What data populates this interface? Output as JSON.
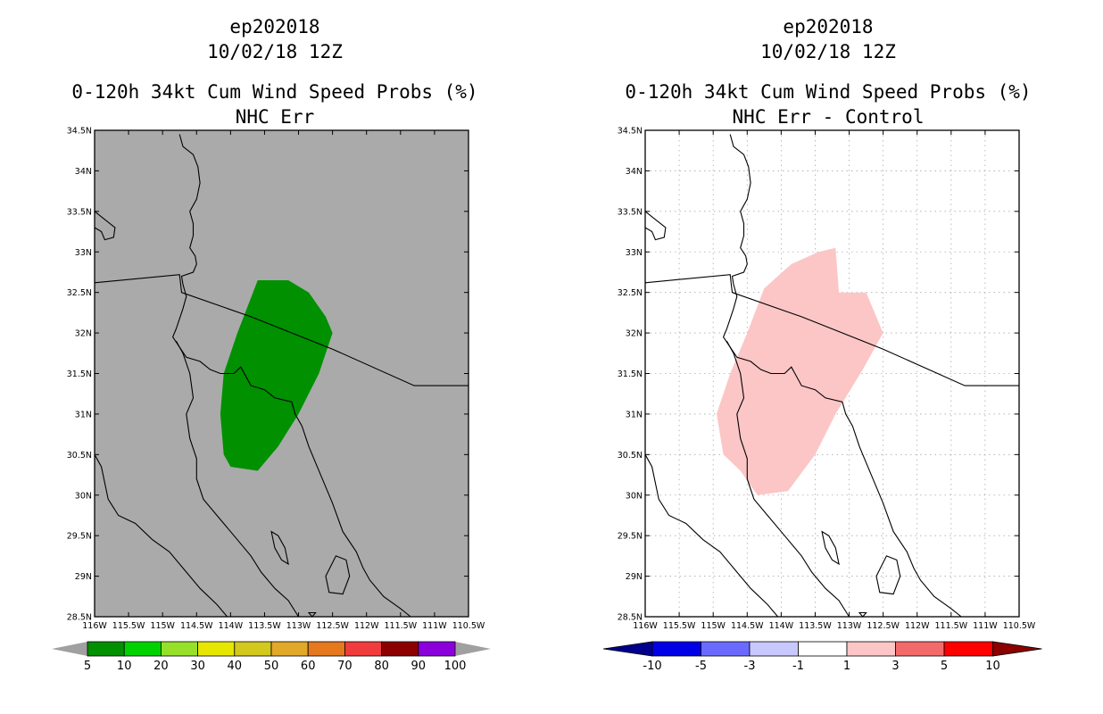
{
  "left_panel": {
    "title1": "ep202018",
    "title2": "10/02/18 12Z",
    "title3": "0-120h 34kt Cum Wind Speed Probs (%)",
    "title4": "NHC Err",
    "background": "#aaaaaa",
    "fill_color": "#009000",
    "colorbar": {
      "colors": [
        "#009000",
        "#00d200",
        "#96e02a",
        "#e6e600",
        "#d2c81e",
        "#e1a82a",
        "#e6781e",
        "#f03c3c",
        "#8c0000",
        "#8c00dc"
      ],
      "labels": [
        "5",
        "10",
        "20",
        "30",
        "40",
        "50",
        "60",
        "70",
        "80",
        "90",
        "100"
      ],
      "end_color": "#a0a0a0"
    }
  },
  "right_panel": {
    "title1": "ep202018",
    "title2": "10/02/18 12Z",
    "title3": "0-120h 34kt Cum Wind Speed Probs (%)",
    "title4": "NHC Err - Control",
    "background": "#ffffff",
    "fill_color": "#fcc6c6",
    "colorbar": {
      "colors": [
        "#0000e6",
        "#6a6aff",
        "#c8c8ff",
        "#ffffff",
        "#fcc6c6",
        "#f36a6a",
        "#ff0000"
      ],
      "labels": [
        "-10",
        "-5",
        "-3",
        "-1",
        "1",
        "3",
        "5",
        "10"
      ],
      "low_color": "#00008c",
      "high_color": "#8c0000"
    }
  },
  "axes": {
    "lat_ticks": [
      "34.5N",
      "34N",
      "33.5N",
      "33N",
      "32.5N",
      "32N",
      "31.5N",
      "31N",
      "30.5N",
      "30N",
      "29.5N",
      "29N",
      "28.5N"
    ],
    "lon_ticks": [
      "116W",
      "115.5W",
      "115W",
      "114.5W",
      "114W",
      "113.5W",
      "113W",
      "112.5W",
      "112W",
      "111.5W",
      "111W",
      "110.5W"
    ],
    "lat_range": [
      28.5,
      34.5
    ],
    "lon_range": [
      -116,
      -110.5
    ]
  },
  "probability_region": [
    [
      -113.6,
      32.65
    ],
    [
      -113.15,
      32.65
    ],
    [
      -112.85,
      32.5
    ],
    [
      -112.6,
      32.2
    ],
    [
      -112.5,
      32.0
    ],
    [
      -112.7,
      31.5
    ],
    [
      -113.0,
      31.0
    ],
    [
      -113.3,
      30.6
    ],
    [
      -113.6,
      30.3
    ],
    [
      -114.0,
      30.35
    ],
    [
      -114.1,
      30.5
    ],
    [
      -114.15,
      31.0
    ],
    [
      -114.1,
      31.5
    ],
    [
      -113.9,
      32.0
    ],
    [
      -113.6,
      32.65
    ]
  ],
  "difference_region": [
    [
      -114.25,
      32.55
    ],
    [
      -113.85,
      32.85
    ],
    [
      -113.45,
      33.0
    ],
    [
      -113.2,
      33.05
    ],
    [
      -113.15,
      32.5
    ],
    [
      -112.75,
      32.5
    ],
    [
      -112.5,
      32.0
    ],
    [
      -112.8,
      31.55
    ],
    [
      -113.2,
      31.0
    ],
    [
      -113.5,
      30.5
    ],
    [
      -113.9,
      30.05
    ],
    [
      -114.35,
      30.0
    ],
    [
      -114.6,
      30.3
    ],
    [
      -114.85,
      30.5
    ],
    [
      -114.95,
      31.0
    ],
    [
      -114.75,
      31.5
    ],
    [
      -114.5,
      32.0
    ],
    [
      -114.25,
      32.55
    ]
  ],
  "coastlines": [
    [
      [
        -114.75,
        34.45
      ],
      [
        -114.7,
        34.3
      ],
      [
        -114.55,
        34.2
      ],
      [
        -114.48,
        34.05
      ],
      [
        -114.45,
        33.85
      ],
      [
        -114.5,
        33.65
      ],
      [
        -114.6,
        33.5
      ],
      [
        -114.55,
        33.35
      ],
      [
        -114.55,
        33.2
      ],
      [
        -114.6,
        33.05
      ],
      [
        -114.52,
        32.95
      ],
      [
        -114.5,
        32.85
      ],
      [
        -114.55,
        32.75
      ],
      [
        -114.72,
        32.7
      ],
      [
        -114.7,
        32.6
      ],
      [
        -114.65,
        32.45
      ],
      [
        -114.7,
        32.3
      ],
      [
        -114.8,
        32.05
      ],
      [
        -114.85,
        31.95
      ],
      [
        -114.65,
        31.7
      ],
      [
        -114.45,
        31.65
      ],
      [
        -114.3,
        31.55
      ],
      [
        -114.15,
        31.5
      ],
      [
        -113.95,
        31.5
      ],
      [
        -113.85,
        31.58
      ],
      [
        -113.7,
        31.35
      ],
      [
        -113.5,
        31.3
      ],
      [
        -113.35,
        31.2
      ],
      [
        -113.1,
        31.15
      ],
      [
        -113.05,
        31.0
      ],
      [
        -112.95,
        30.85
      ],
      [
        -112.85,
        30.6
      ],
      [
        -112.75,
        30.4
      ],
      [
        -112.65,
        30.2
      ],
      [
        -112.5,
        29.9
      ],
      [
        -112.35,
        29.55
      ],
      [
        -112.15,
        29.3
      ],
      [
        -112.05,
        29.1
      ],
      [
        -111.95,
        28.95
      ],
      [
        -111.75,
        28.75
      ],
      [
        -111.5,
        28.6
      ],
      [
        -111.35,
        28.5
      ]
    ],
    [
      [
        -114.8,
        31.9
      ],
      [
        -114.7,
        31.75
      ],
      [
        -114.6,
        31.5
      ],
      [
        -114.55,
        31.2
      ],
      [
        -114.65,
        31.0
      ],
      [
        -114.6,
        30.7
      ],
      [
        -114.5,
        30.45
      ],
      [
        -114.5,
        30.2
      ],
      [
        -114.4,
        29.95
      ],
      [
        -114.2,
        29.75
      ],
      [
        -113.95,
        29.5
      ],
      [
        -113.7,
        29.25
      ],
      [
        -113.55,
        29.05
      ],
      [
        -113.35,
        28.85
      ],
      [
        -113.15,
        28.7
      ],
      [
        -113.0,
        28.5
      ]
    ],
    [
      [
        -116.0,
        30.5
      ],
      [
        -115.9,
        30.35
      ],
      [
        -115.85,
        30.15
      ],
      [
        -115.8,
        29.95
      ],
      [
        -115.65,
        29.75
      ],
      [
        -115.4,
        29.65
      ],
      [
        -115.15,
        29.45
      ],
      [
        -114.9,
        29.3
      ],
      [
        -114.65,
        29.05
      ],
      [
        -114.45,
        28.85
      ],
      [
        -114.2,
        28.65
      ],
      [
        -114.05,
        28.5
      ]
    ],
    [
      [
        -116.0,
        33.5
      ],
      [
        -115.85,
        33.4
      ],
      [
        -115.7,
        33.3
      ],
      [
        -115.72,
        33.18
      ],
      [
        -115.85,
        33.15
      ],
      [
        -115.9,
        33.25
      ],
      [
        -116.0,
        33.3
      ]
    ]
  ],
  "islands": [
    [
      [
        -113.4,
        29.55
      ],
      [
        -113.3,
        29.5
      ],
      [
        -113.2,
        29.35
      ],
      [
        -113.15,
        29.15
      ],
      [
        -113.25,
        29.2
      ],
      [
        -113.35,
        29.35
      ],
      [
        -113.4,
        29.55
      ]
    ],
    [
      [
        -112.45,
        29.25
      ],
      [
        -112.3,
        29.2
      ],
      [
        -112.25,
        29.0
      ],
      [
        -112.35,
        28.78
      ],
      [
        -112.55,
        28.8
      ],
      [
        -112.6,
        29.0
      ],
      [
        -112.45,
        29.25
      ]
    ],
    [
      [
        -112.85,
        28.55
      ],
      [
        -112.8,
        28.5
      ],
      [
        -112.75,
        28.55
      ],
      [
        -112.85,
        28.55
      ]
    ]
  ],
  "borders": [
    [
      [
        -116.0,
        32.62
      ],
      [
        -114.75,
        32.72
      ],
      [
        -114.72,
        32.5
      ],
      [
        -113.7,
        32.2
      ],
      [
        -112.5,
        31.8
      ],
      [
        -111.3,
        31.35
      ],
      [
        -110.5,
        31.35
      ]
    ]
  ]
}
